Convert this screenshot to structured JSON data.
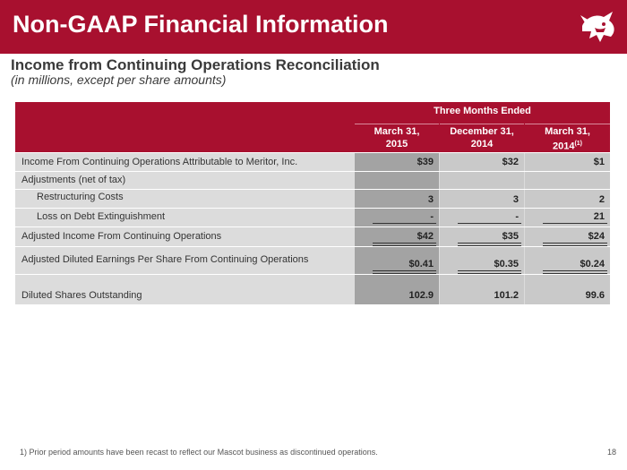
{
  "slide": {
    "title": "Non-GAAP Financial Information",
    "subtitle": "Income from Continuing Operations Reconciliation",
    "subnote": "(in millions, except per share amounts)",
    "page_number": "18",
    "footnote": "1)  Prior period amounts have been recast to reflect our Mascot business as discontinued operations."
  },
  "table": {
    "span_header": "Three Months Ended",
    "columns": [
      {
        "line1": "March 31,",
        "line2": "2015",
        "sup": ""
      },
      {
        "line1": "December 31,",
        "line2": "2014",
        "sup": ""
      },
      {
        "line1": "March 31,",
        "line2": "2014",
        "sup": "(1)"
      }
    ],
    "rows": [
      {
        "label": "Income From Continuing Operations Attributable to Meritor, Inc.",
        "values": [
          "$39",
          "$32",
          "$1"
        ]
      },
      {
        "label": "Adjustments (net of tax)",
        "values": [
          "",
          "",
          ""
        ]
      },
      {
        "label": "Restructuring Costs",
        "values": [
          "3",
          "3",
          "2"
        ]
      },
      {
        "label": "Loss on Debt Extinguishment",
        "values": [
          "-",
          "-",
          "21"
        ]
      },
      {
        "label": "Adjusted Income From Continuing Operations",
        "values": [
          "$42",
          "$35",
          "$24"
        ]
      },
      {
        "label": "Adjusted Diluted Earnings Per Share From Continuing Operations",
        "values": [
          "$0.41",
          "$0.35",
          "$0.24"
        ]
      },
      {
        "label": "Diluted Shares Outstanding",
        "values": [
          "102.9",
          "101.2",
          "99.6"
        ]
      }
    ]
  },
  "colors": {
    "brand": "#a8102f"
  },
  "logo": {
    "icon": "bull-logo-icon"
  }
}
